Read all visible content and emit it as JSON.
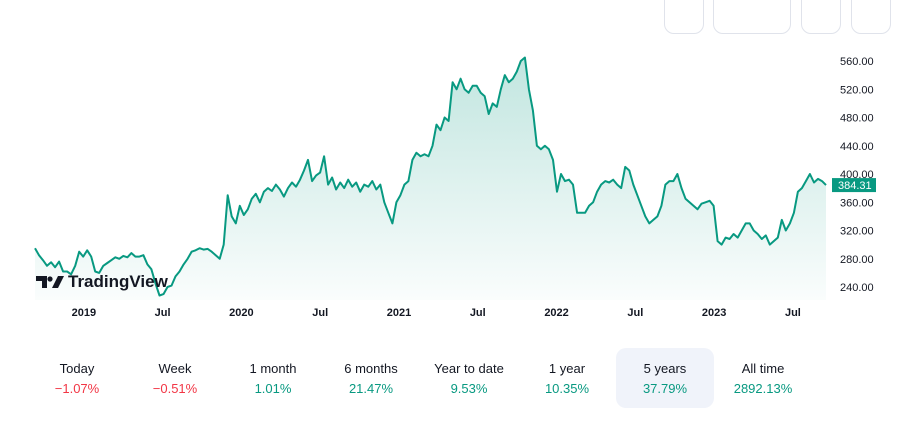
{
  "chart_data": {
    "type": "area",
    "title": "",
    "ylim": [
      220,
      580
    ],
    "y_ticks": [
      "560.00",
      "520.00",
      "480.00",
      "440.00",
      "400.00",
      "360.00",
      "320.00",
      "280.00",
      "240.00"
    ],
    "y_tick_values": [
      560,
      520,
      480,
      440,
      400,
      360,
      320,
      280,
      240
    ],
    "x_ticks": [
      {
        "label": "2019",
        "t": 2019.0
      },
      {
        "label": "Jul",
        "t": 2019.5
      },
      {
        "label": "2020",
        "t": 2020.0
      },
      {
        "label": "Jul",
        "t": 2020.5
      },
      {
        "label": "2021",
        "t": 2021.0
      },
      {
        "label": "Jul",
        "t": 2021.5
      },
      {
        "label": "2022",
        "t": 2022.0
      },
      {
        "label": "Jul",
        "t": 2022.5
      },
      {
        "label": "2023",
        "t": 2023.0
      },
      {
        "label": "Jul",
        "t": 2023.5
      }
    ],
    "x_range": [
      2018.69,
      2023.71
    ],
    "last_value_label": "384.31",
    "values": [
      295,
      285,
      278,
      270,
      275,
      268,
      276,
      262,
      262,
      258,
      270,
      290,
      283,
      292,
      283,
      262,
      260,
      270,
      274,
      278,
      282,
      280,
      284,
      282,
      288,
      283,
      283,
      285,
      272,
      265,
      245,
      228,
      230,
      240,
      242,
      255,
      262,
      272,
      280,
      290,
      292,
      295,
      293,
      294,
      290,
      285,
      280,
      300,
      370,
      340,
      330,
      355,
      342,
      350,
      365,
      372,
      360,
      375,
      380,
      376,
      385,
      378,
      368,
      380,
      388,
      382,
      392,
      405,
      420,
      390,
      398,
      402,
      425,
      385,
      395,
      378,
      388,
      380,
      392,
      382,
      388,
      375,
      385,
      382,
      390,
      378,
      385,
      360,
      345,
      330,
      360,
      370,
      385,
      390,
      420,
      430,
      425,
      428,
      425,
      440,
      470,
      462,
      480,
      475,
      530,
      520,
      535,
      520,
      515,
      525,
      525,
      515,
      510,
      485,
      500,
      495,
      520,
      540,
      530,
      535,
      545,
      560,
      565,
      520,
      490,
      440,
      435,
      440,
      435,
      420,
      375,
      400,
      390,
      392,
      385,
      345,
      345,
      345,
      355,
      360,
      375,
      385,
      390,
      388,
      392,
      385,
      380,
      410,
      405,
      385,
      370,
      355,
      340,
      330,
      335,
      340,
      355,
      385,
      390,
      390,
      400,
      380,
      365,
      360,
      355,
      350,
      358,
      360,
      362,
      355,
      305,
      300,
      310,
      308,
      315,
      310,
      320,
      330,
      330,
      320,
      315,
      308,
      313,
      300,
      305,
      310,
      335,
      320,
      330,
      345,
      375,
      380,
      390,
      400,
      388,
      393,
      390,
      384.31
    ],
    "line_color": "#089981"
  },
  "logo": "TradingView",
  "stats": [
    {
      "label": "Today",
      "value": "−1.07%",
      "sign": "neg"
    },
    {
      "label": "Week",
      "value": "−0.51%",
      "sign": "neg"
    },
    {
      "label": "1 month",
      "value": "1.01%",
      "sign": "pos"
    },
    {
      "label": "6 months",
      "value": "21.47%",
      "sign": "pos"
    },
    {
      "label": "Year to date",
      "value": "9.53%",
      "sign": "pos"
    },
    {
      "label": "1 year",
      "value": "10.35%",
      "sign": "pos"
    },
    {
      "label": "5 years",
      "value": "37.79%",
      "sign": "pos",
      "selected": true
    },
    {
      "label": "All time",
      "value": "2892.13%",
      "sign": "pos"
    }
  ]
}
